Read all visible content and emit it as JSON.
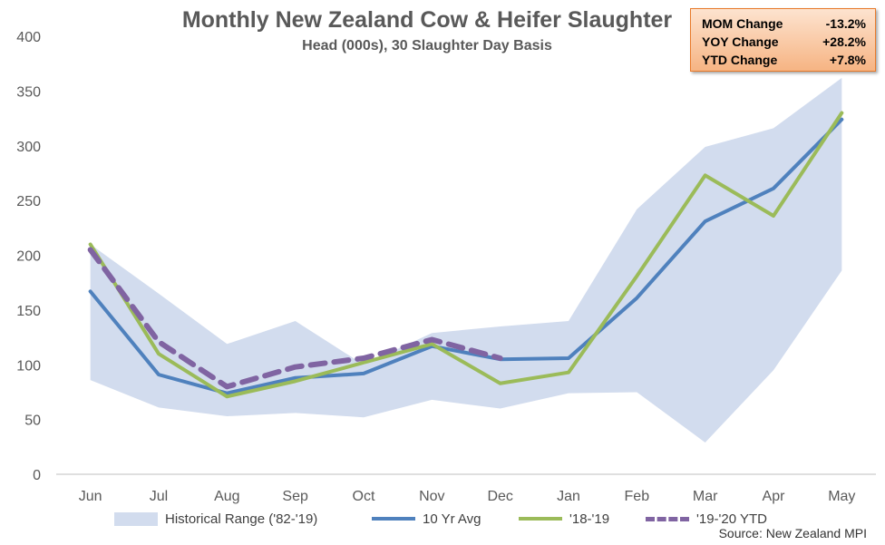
{
  "title": "Monthly New Zealand Cow & Heifer Slaughter",
  "subtitle": "Head (000s), 30 Slaughter Day Basis",
  "source": "Source: New Zealand MPI",
  "changes": [
    {
      "label": "MOM Change",
      "value": "-13.2%"
    },
    {
      "label": "YOY Change",
      "value": "+28.2%"
    },
    {
      "label": "YTD Change",
      "value": "+7.8%"
    }
  ],
  "colors": {
    "range": "#d2dcee",
    "avg": "#4f81bd",
    "prev": "#9bbb59",
    "ytd": "#8064a2",
    "box_border": "#e87a2a"
  },
  "chart_data": {
    "type": "line",
    "categories": [
      "Jun",
      "Jul",
      "Aug",
      "Sep",
      "Oct",
      "Nov",
      "Dec",
      "Jan",
      "Feb",
      "Mar",
      "Apr",
      "May"
    ],
    "ylim": [
      0,
      400
    ],
    "yticks": [
      0,
      50,
      100,
      150,
      200,
      250,
      300,
      350,
      400
    ],
    "grid": false,
    "legend_position": "bottom",
    "range": {
      "name": "Historical Range ('82-'19)",
      "low": [
        86,
        61,
        53,
        56,
        52,
        68,
        60,
        74,
        75,
        29,
        95,
        186
      ],
      "high": [
        210,
        165,
        119,
        140,
        100,
        129,
        135,
        140,
        242,
        299,
        316,
        362
      ]
    },
    "series": [
      {
        "name": "10 Yr Avg",
        "values": [
          167,
          91,
          74,
          88,
          92,
          117,
          105,
          106,
          161,
          231,
          261,
          324
        ]
      },
      {
        "name": "'18-'19",
        "values": [
          210,
          110,
          71,
          85,
          102,
          119,
          83,
          93,
          181,
          273,
          236,
          330
        ]
      },
      {
        "name": "'19-'20 YTD",
        "values": [
          205,
          121,
          80,
          98,
          106,
          123,
          106,
          null,
          null,
          null,
          null,
          null
        ]
      }
    ]
  }
}
